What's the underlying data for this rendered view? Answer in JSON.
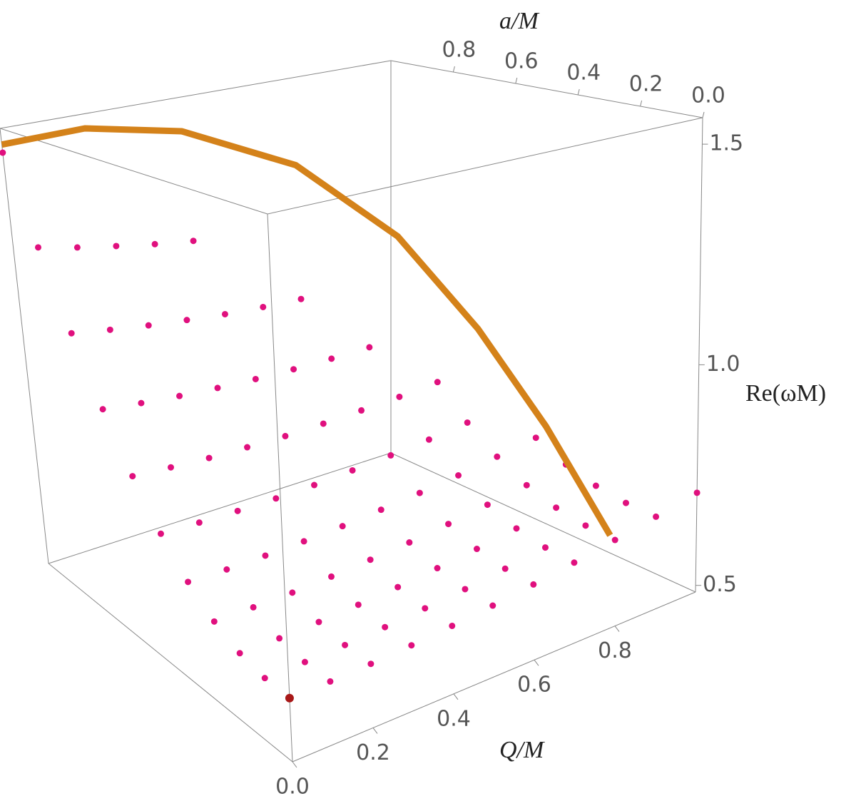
{
  "chart_data": {
    "type": "scatter3d",
    "x_label": "Q/M",
    "y_label": "a/M",
    "z_label": "Re(ωM)",
    "xlim": [
      0,
      1
    ],
    "ylim": [
      0,
      1
    ],
    "zlim": [
      0.485,
      1.56
    ],
    "xticks": [
      {
        "value": 0,
        "label": "0.0"
      },
      0.2,
      0.4,
      0.6,
      0.8
    ],
    "yticks": [
      {
        "value": 0,
        "label": "0.0"
      },
      0.2,
      0.4,
      0.6,
      0.8
    ],
    "zticks": [
      0.5,
      {
        "value": 1,
        "label": "1.0"
      },
      1.5
    ],
    "color": "#e0107e",
    "origin_color": "#a81818",
    "x": [
      0,
      0.1,
      0.2,
      0.3,
      0.4,
      0.5,
      0.6,
      0.7,
      0.8,
      0.9,
      1
    ],
    "y": [
      0,
      0.1,
      0.2,
      0.3,
      0.4,
      0.5,
      0.6,
      0.7,
      0.8,
      0.9,
      1
    ],
    "z": [
      [
        0.61,
        0.613,
        0.626,
        0.654,
        0.7,
        0.767,
        0.858,
        0.975,
        1.119,
        1.294,
        1.5
      ],
      [
        0.611,
        0.614,
        0.626,
        0.654,
        0.698,
        0.764,
        0.852,
        0.965,
        1.105,
        1.274
      ],
      [
        0.614,
        0.617,
        0.629,
        0.655,
        0.699,
        0.762,
        0.847,
        0.957,
        1.093,
        1.257
      ],
      [
        0.619,
        0.622,
        0.634,
        0.659,
        0.701,
        0.762,
        0.845,
        0.951,
        1.083,
        1.241
      ],
      [
        0.626,
        0.629,
        0.64,
        0.665,
        0.705,
        0.764,
        0.844,
        0.947,
        1.074,
        1.228
      ],
      [
        0.635,
        0.637,
        0.649,
        0.672,
        0.712,
        0.769,
        0.846,
        0.945,
        1.068
      ],
      [
        0.646,
        0.648,
        0.659,
        0.682,
        0.72,
        0.775,
        0.85,
        0.945,
        1.064
      ],
      [
        0.659,
        0.661,
        0.672,
        0.694,
        0.73,
        0.783,
        0.855,
        0.947
      ],
      [
        0.674,
        0.676,
        0.686,
        0.707,
        0.743,
        0.794,
        0.863
      ],
      [
        0.691,
        0.693,
        0.703,
        0.723,
        0.757
      ],
      [
        0.71
      ]
    ],
    "curve": {
      "color": "#d4821a",
      "x": [
        0,
        0.2,
        0.4,
        0.6,
        0.75,
        0.85,
        0.92,
        0.97
      ],
      "y": [
        1,
        0.98,
        0.917,
        0.8,
        0.661,
        0.527,
        0.392,
        0.243
      ],
      "z": [
        1.52,
        1.53,
        1.5,
        1.4,
        1.22,
        1.0,
        0.78,
        0.55
      ]
    }
  }
}
